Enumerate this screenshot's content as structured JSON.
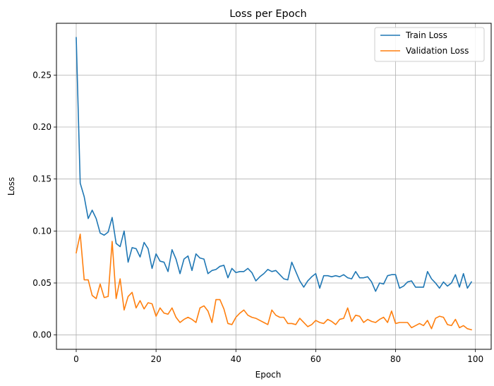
{
  "chart_data": {
    "type": "line",
    "title": "Loss per Epoch",
    "xlabel": "Epoch",
    "ylabel": "Loss",
    "xlim": [
      -4.95,
      103.95
    ],
    "ylim": [
      -0.0138,
      0.2998
    ],
    "xticks": [
      0,
      20,
      40,
      60,
      80,
      100
    ],
    "yticks": [
      0.0,
      0.05,
      0.1,
      0.15,
      0.2,
      0.25
    ],
    "ytick_labels": [
      "0.00",
      "0.05",
      "0.10",
      "0.15",
      "0.20",
      "0.25"
    ],
    "grid": true,
    "legend_position": "top-right",
    "x": [
      0,
      1,
      2,
      3,
      4,
      5,
      6,
      7,
      8,
      9,
      10,
      11,
      12,
      13,
      14,
      15,
      16,
      17,
      18,
      19,
      20,
      21,
      22,
      23,
      24,
      25,
      26,
      27,
      28,
      29,
      30,
      31,
      32,
      33,
      34,
      35,
      36,
      37,
      38,
      39,
      40,
      41,
      42,
      43,
      44,
      45,
      46,
      47,
      48,
      49,
      50,
      51,
      52,
      53,
      54,
      55,
      56,
      57,
      58,
      59,
      60,
      61,
      62,
      63,
      64,
      65,
      66,
      67,
      68,
      69,
      70,
      71,
      72,
      73,
      74,
      75,
      76,
      77,
      78,
      79,
      80,
      81,
      82,
      83,
      84,
      85,
      86,
      87,
      88,
      89,
      90,
      91,
      92,
      93,
      94,
      95,
      96,
      97,
      98,
      99
    ],
    "series": [
      {
        "name": "Train Loss",
        "color": "#1f77b4",
        "values": [
          0.286,
          0.146,
          0.133,
          0.112,
          0.12,
          0.112,
          0.098,
          0.096,
          0.099,
          0.113,
          0.088,
          0.085,
          0.1,
          0.07,
          0.084,
          0.083,
          0.075,
          0.089,
          0.083,
          0.064,
          0.078,
          0.071,
          0.07,
          0.061,
          0.082,
          0.073,
          0.059,
          0.073,
          0.076,
          0.062,
          0.078,
          0.074,
          0.073,
          0.059,
          0.062,
          0.063,
          0.066,
          0.067,
          0.055,
          0.064,
          0.06,
          0.061,
          0.061,
          0.064,
          0.06,
          0.052,
          0.056,
          0.059,
          0.063,
          0.061,
          0.062,
          0.058,
          0.054,
          0.053,
          0.07,
          0.061,
          0.052,
          0.046,
          0.052,
          0.056,
          0.059,
          0.045,
          0.057,
          0.057,
          0.056,
          0.057,
          0.056,
          0.058,
          0.055,
          0.054,
          0.061,
          0.055,
          0.055,
          0.056,
          0.051,
          0.042,
          0.05,
          0.049,
          0.057,
          0.058,
          0.058,
          0.045,
          0.047,
          0.051,
          0.052,
          0.046,
          0.046,
          0.046,
          0.061,
          0.054,
          0.05,
          0.045,
          0.051,
          0.047,
          0.05,
          0.058,
          0.046,
          0.059,
          0.045,
          0.051
        ]
      },
      {
        "name": "Validation Loss",
        "color": "#ff7f0e",
        "values": [
          0.079,
          0.097,
          0.053,
          0.053,
          0.038,
          0.035,
          0.049,
          0.036,
          0.037,
          0.09,
          0.035,
          0.054,
          0.024,
          0.037,
          0.041,
          0.026,
          0.033,
          0.025,
          0.031,
          0.03,
          0.018,
          0.026,
          0.021,
          0.02,
          0.026,
          0.017,
          0.012,
          0.015,
          0.017,
          0.015,
          0.012,
          0.026,
          0.028,
          0.023,
          0.012,
          0.034,
          0.034,
          0.025,
          0.011,
          0.01,
          0.017,
          0.021,
          0.024,
          0.019,
          0.017,
          0.016,
          0.014,
          0.012,
          0.01,
          0.024,
          0.019,
          0.017,
          0.017,
          0.011,
          0.011,
          0.01,
          0.016,
          0.012,
          0.008,
          0.01,
          0.014,
          0.012,
          0.011,
          0.015,
          0.013,
          0.01,
          0.015,
          0.016,
          0.026,
          0.013,
          0.019,
          0.018,
          0.012,
          0.015,
          0.013,
          0.012,
          0.015,
          0.017,
          0.012,
          0.023,
          0.011,
          0.012,
          0.012,
          0.012,
          0.007,
          0.009,
          0.011,
          0.009,
          0.014,
          0.006,
          0.016,
          0.018,
          0.017,
          0.01,
          0.009,
          0.015,
          0.007,
          0.009,
          0.006,
          0.005
        ]
      }
    ]
  }
}
